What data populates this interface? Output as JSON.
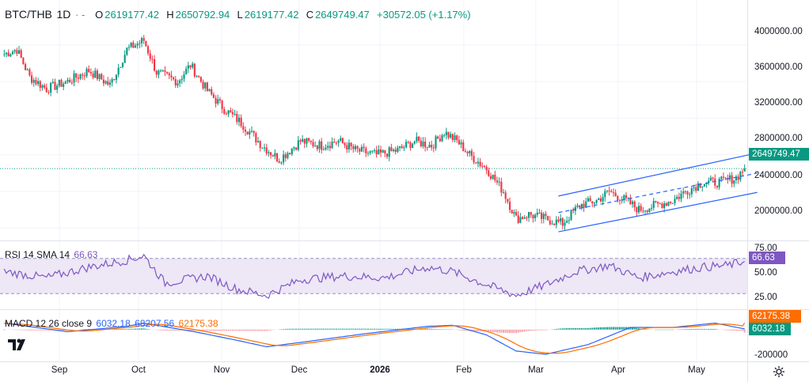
{
  "header": {
    "symbol": "BTC/THB",
    "interval": "1D",
    "dots": "·  -",
    "open_label": "O",
    "open": "2619177.42",
    "high_label": "H",
    "high": "2650792.94",
    "low_label": "L",
    "low": "2619177.42",
    "close_label": "C",
    "close": "2649749.47",
    "change": "+30572.05 (+1.17%)"
  },
  "price_axis": {
    "ticks": [
      "4000000.00",
      "3600000.00",
      "3200000.00",
      "2800000.00",
      "2400000.00",
      "2000000.00"
    ],
    "current_price_badge": "2649749.47"
  },
  "rsi": {
    "label": "RSI 14 SMA 14",
    "value": "66.63",
    "ticks": [
      "75.00",
      "50.00",
      "25.00"
    ],
    "badge": "66.63"
  },
  "macd": {
    "label": "MACD 12 26 close 9",
    "macd_value": "6032.18",
    "signal_value": "68207.56",
    "hist_value": "62175.38",
    "ticks": [
      "-200000"
    ],
    "badge_signal": "62175.38",
    "badge_macd": "6032.18"
  },
  "time_axis": [
    "Sep",
    "Oct",
    "Nov",
    "Dec",
    "2026",
    "Feb",
    "Mar",
    "Apr",
    "May"
  ],
  "colors": {
    "up": "#089981",
    "down": "#f23645",
    "rsi_line": "#7e57c2",
    "rsi_band": "#ede7f6",
    "macd_line": "#2962ff",
    "signal_line": "#ff6d00",
    "channel": "#2962ff"
  },
  "chart_data": {
    "type": "candlestick",
    "price_keypoints": [
      [
        0,
        3900000
      ],
      [
        6,
        3950000
      ],
      [
        12,
        3650000
      ],
      [
        20,
        3520000
      ],
      [
        30,
        3600000
      ],
      [
        40,
        3720000
      ],
      [
        50,
        3560000
      ],
      [
        58,
        3950000
      ],
      [
        66,
        4050000
      ],
      [
        72,
        3700000
      ],
      [
        82,
        3600000
      ],
      [
        88,
        3780000
      ],
      [
        96,
        3500000
      ],
      [
        104,
        3300000
      ],
      [
        112,
        3150000
      ],
      [
        122,
        2900000
      ],
      [
        130,
        2750000
      ],
      [
        140,
        2950000
      ],
      [
        150,
        2900000
      ],
      [
        158,
        2950000
      ],
      [
        166,
        2850000
      ],
      [
        176,
        2800000
      ],
      [
        186,
        2850000
      ],
      [
        194,
        2950000
      ],
      [
        202,
        2900000
      ],
      [
        208,
        3050000
      ],
      [
        214,
        2950000
      ],
      [
        220,
        2800000
      ],
      [
        228,
        2650000
      ],
      [
        236,
        2400000
      ],
      [
        242,
        2100000
      ],
      [
        248,
        2150000
      ],
      [
        256,
        2100000
      ],
      [
        264,
        2050000
      ],
      [
        272,
        2250000
      ],
      [
        280,
        2300000
      ],
      [
        286,
        2400000
      ],
      [
        294,
        2300000
      ],
      [
        300,
        2200000
      ],
      [
        308,
        2250000
      ],
      [
        316,
        2300000
      ],
      [
        322,
        2400000
      ],
      [
        330,
        2500000
      ],
      [
        338,
        2500000
      ],
      [
        346,
        2550000
      ],
      [
        350,
        2650000
      ]
    ],
    "rsi_keypoints": [
      [
        0,
        55
      ],
      [
        20,
        48
      ],
      [
        40,
        60
      ],
      [
        58,
        68
      ],
      [
        66,
        73
      ],
      [
        76,
        42
      ],
      [
        96,
        50
      ],
      [
        110,
        35
      ],
      [
        124,
        28
      ],
      [
        140,
        46
      ],
      [
        160,
        50
      ],
      [
        180,
        48
      ],
      [
        200,
        60
      ],
      [
        212,
        55
      ],
      [
        228,
        40
      ],
      [
        242,
        28
      ],
      [
        256,
        40
      ],
      [
        270,
        55
      ],
      [
        286,
        62
      ],
      [
        300,
        48
      ],
      [
        316,
        55
      ],
      [
        330,
        60
      ],
      [
        342,
        62
      ],
      [
        350,
        66.63
      ]
    ],
    "macd_keypoints": [
      [
        0,
        60000
      ],
      [
        30,
        -20000
      ],
      [
        58,
        30000
      ],
      [
        66,
        60000
      ],
      [
        90,
        -20000
      ],
      [
        110,
        -100000
      ],
      [
        124,
        -160000
      ],
      [
        140,
        -120000
      ],
      [
        170,
        -40000
      ],
      [
        200,
        30000
      ],
      [
        212,
        40000
      ],
      [
        228,
        -50000
      ],
      [
        242,
        -200000
      ],
      [
        256,
        -230000
      ],
      [
        276,
        -140000
      ],
      [
        296,
        20000
      ],
      [
        316,
        20000
      ],
      [
        336,
        60000
      ],
      [
        350,
        6032.18
      ]
    ],
    "channel": {
      "start_index": 262,
      "end_index": 350,
      "upper": [
        2350000,
        2820000
      ],
      "middle": [
        2170000,
        2600000
      ],
      "lower": [
        1960000,
        2390000
      ]
    },
    "price_ylim": [
      1900000,
      4300000
    ],
    "rsi_ylim": [
      15,
      85
    ],
    "macd_ylim": [
      -260000,
      160000
    ],
    "current_price": 2649749.47
  }
}
